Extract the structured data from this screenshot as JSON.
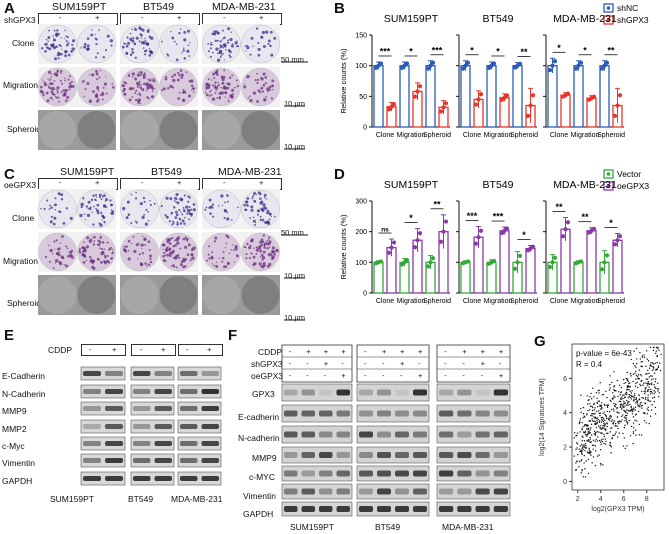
{
  "panel_labels": [
    "A",
    "B",
    "C",
    "D",
    "E",
    "F",
    "G"
  ],
  "panel_a": {
    "factor": "shGPX3",
    "cell_lines": [
      "SUM159PT",
      "BT549",
      "MDA-MB-231"
    ],
    "signs": [
      "-",
      "+"
    ],
    "rows": [
      "Clone",
      "Migration",
      "Spheroid"
    ],
    "scales": [
      "50 mm",
      "10 μm",
      "10 μm"
    ]
  },
  "panel_c": {
    "factor": "oeGPX3",
    "cell_lines": [
      "SUM159PT",
      "BT549",
      "MDA-MB-231"
    ],
    "signs": [
      "-",
      "+"
    ],
    "rows": [
      "Clone",
      "Migration",
      "Spheroid"
    ],
    "scales": [
      "50 mm",
      "10 μm",
      "10 μm"
    ]
  },
  "panel_e": {
    "treatment": "CDDP",
    "signs": [
      "-",
      "+"
    ],
    "markers": [
      "E-Cadherin",
      "N-Cadherin",
      "MMP9",
      "MMP2",
      "c-Myc",
      "Vimentin",
      "GAPDH"
    ],
    "cell_lines": [
      "SUM159PT",
      "BT549",
      "MDA-MB-231"
    ]
  },
  "panel_f": {
    "row_labels": [
      "CDDP",
      "shGPX3",
      "oeGPX3"
    ],
    "signs": [
      [
        "-",
        "+",
        "+",
        "+"
      ],
      [
        "-",
        "-",
        "+",
        "-"
      ],
      [
        "-",
        "-",
        "-",
        "+"
      ]
    ],
    "markers": [
      "GPX3",
      "E-cadherin",
      "N-cadherin",
      "MMP9",
      "c-MYC",
      "Vimentin",
      "GAPDH"
    ],
    "cell_lines": [
      "SUM159PT",
      "BT549",
      "MDA-MB-231"
    ]
  },
  "chart_data": [
    {
      "type": "bar",
      "panel": "B",
      "ylabel": "Relative counts (%)",
      "ylim": [
        0,
        150
      ],
      "yticks": [
        0,
        50,
        100,
        150
      ],
      "categories": [
        "Clone",
        "Migration",
        "Spheroid"
      ],
      "legend": [
        "shNC",
        "shGPX3"
      ],
      "colors": [
        "#2a5cb8",
        "#e8352b"
      ],
      "subplots": [
        {
          "title": "SUM159PT",
          "control": [
            100,
            100,
            100
          ],
          "treated": [
            33,
            58,
            32
          ],
          "errs": [
            [
              6,
              6,
              8
            ],
            [
              7,
              14,
              11
            ]
          ],
          "sig": [
            "***",
            "*",
            "***"
          ]
        },
        {
          "title": "BT549",
          "control": [
            100,
            100,
            100
          ],
          "treated": [
            45,
            48,
            35
          ],
          "errs": [
            [
              8,
              6,
              5
            ],
            [
              14,
              6,
              28
            ]
          ],
          "sig": [
            "*",
            "*",
            "**"
          ]
        },
        {
          "title": "MDA-MB-231",
          "control": [
            100,
            100,
            100
          ],
          "treated": [
            52,
            47,
            35
          ],
          "errs": [
            [
              12,
              8,
              8
            ],
            [
              4,
              4,
              28
            ]
          ],
          "sig": [
            "*",
            "*",
            "**"
          ]
        }
      ]
    },
    {
      "type": "bar",
      "panel": "D",
      "ylabel": "Relative counts (%)",
      "ylim": [
        0,
        300
      ],
      "yticks": [
        0,
        100,
        200,
        300
      ],
      "categories": [
        "Clone",
        "Migration",
        "Spheroid"
      ],
      "legend": [
        "Vector",
        "oeGPX3"
      ],
      "colors": [
        "#36a83a",
        "#8b3aa8"
      ],
      "subplots": [
        {
          "title": "SUM159PT",
          "control": [
            100,
            100,
            100
          ],
          "treated": [
            148,
            172,
            200
          ],
          "errs": [
            [
              5,
              12,
              22
            ],
            [
              28,
              38,
              55
            ]
          ],
          "sig": [
            "ns",
            "*",
            "**"
          ]
        },
        {
          "title": "BT549",
          "control": [
            100,
            100,
            100
          ],
          "treated": [
            182,
            203,
            145
          ],
          "errs": [
            [
              5,
              8,
              35
            ],
            [
              35,
              12,
              10
            ]
          ],
          "sig": [
            "***",
            "***",
            "*"
          ]
        },
        {
          "title": "MDA-MB-231",
          "control": [
            100,
            100,
            100
          ],
          "treated": [
            208,
            203,
            172
          ],
          "errs": [
            [
              25,
              5,
              38
            ],
            [
              38,
              10,
              22
            ]
          ],
          "sig": [
            "**",
            "**",
            "*"
          ]
        }
      ]
    },
    {
      "type": "scatter",
      "panel": "G",
      "xlabel": "log2(GPX3 TPM)",
      "ylabel": "log2(14 Signatures TPM)",
      "xlim": [
        1.5,
        9.5
      ],
      "ylim": [
        -0.5,
        8
      ],
      "xticks": [
        2,
        4,
        6,
        8
      ],
      "yticks": [
        0,
        2,
        4,
        6
      ],
      "annotation": [
        "p-value = 6e-43",
        "R = 0.4"
      ]
    }
  ]
}
